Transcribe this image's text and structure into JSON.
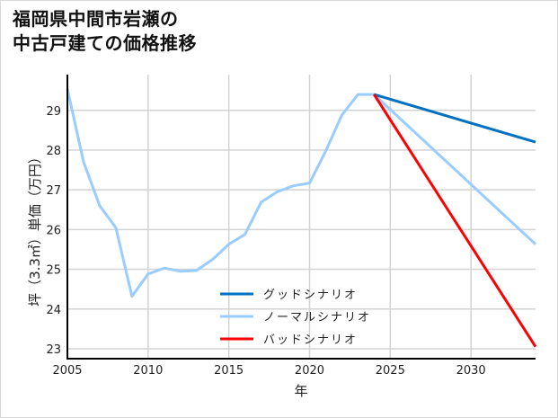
{
  "title_lines": [
    "福岡県中間市岩瀬の",
    "中古戸建ての価格推移"
  ],
  "chart_data": {
    "type": "line",
    "title": "福岡県中間市岩瀬の中古戸建ての価格推移",
    "xlabel": "年",
    "ylabel": "坪（3.3㎡）単価（万円）",
    "xlim": [
      2005,
      2034
    ],
    "ylim": [
      22.75,
      29.9
    ],
    "xticks": [
      2005,
      2010,
      2015,
      2020,
      2025,
      2030
    ],
    "yticks": [
      23,
      24,
      25,
      26,
      27,
      28,
      29
    ],
    "grid": true,
    "legend_position": "lower center",
    "series": [
      {
        "name": "グッドシナリオ",
        "color": "#0070c0",
        "x": [
          2024,
          2034
        ],
        "values": [
          29.4,
          28.2
        ]
      },
      {
        "name": "ノーマルシナリオ",
        "color": "#99ccff",
        "x": [
          2005,
          2006,
          2007,
          2008,
          2009,
          2010,
          2011,
          2012,
          2013,
          2014,
          2015,
          2016,
          2017,
          2018,
          2019,
          2020,
          2021,
          2022,
          2023,
          2024,
          2034
        ],
        "values": [
          29.54,
          27.7,
          26.6,
          26.05,
          24.32,
          24.88,
          25.03,
          24.95,
          24.97,
          25.25,
          25.63,
          25.88,
          26.69,
          26.95,
          27.1,
          27.17,
          27.97,
          28.88,
          29.4,
          29.4,
          25.63
        ]
      },
      {
        "name": "バッドシナリオ",
        "color": "#ff0000",
        "x": [
          2024,
          2034
        ],
        "values": [
          29.4,
          23.05
        ]
      }
    ]
  }
}
